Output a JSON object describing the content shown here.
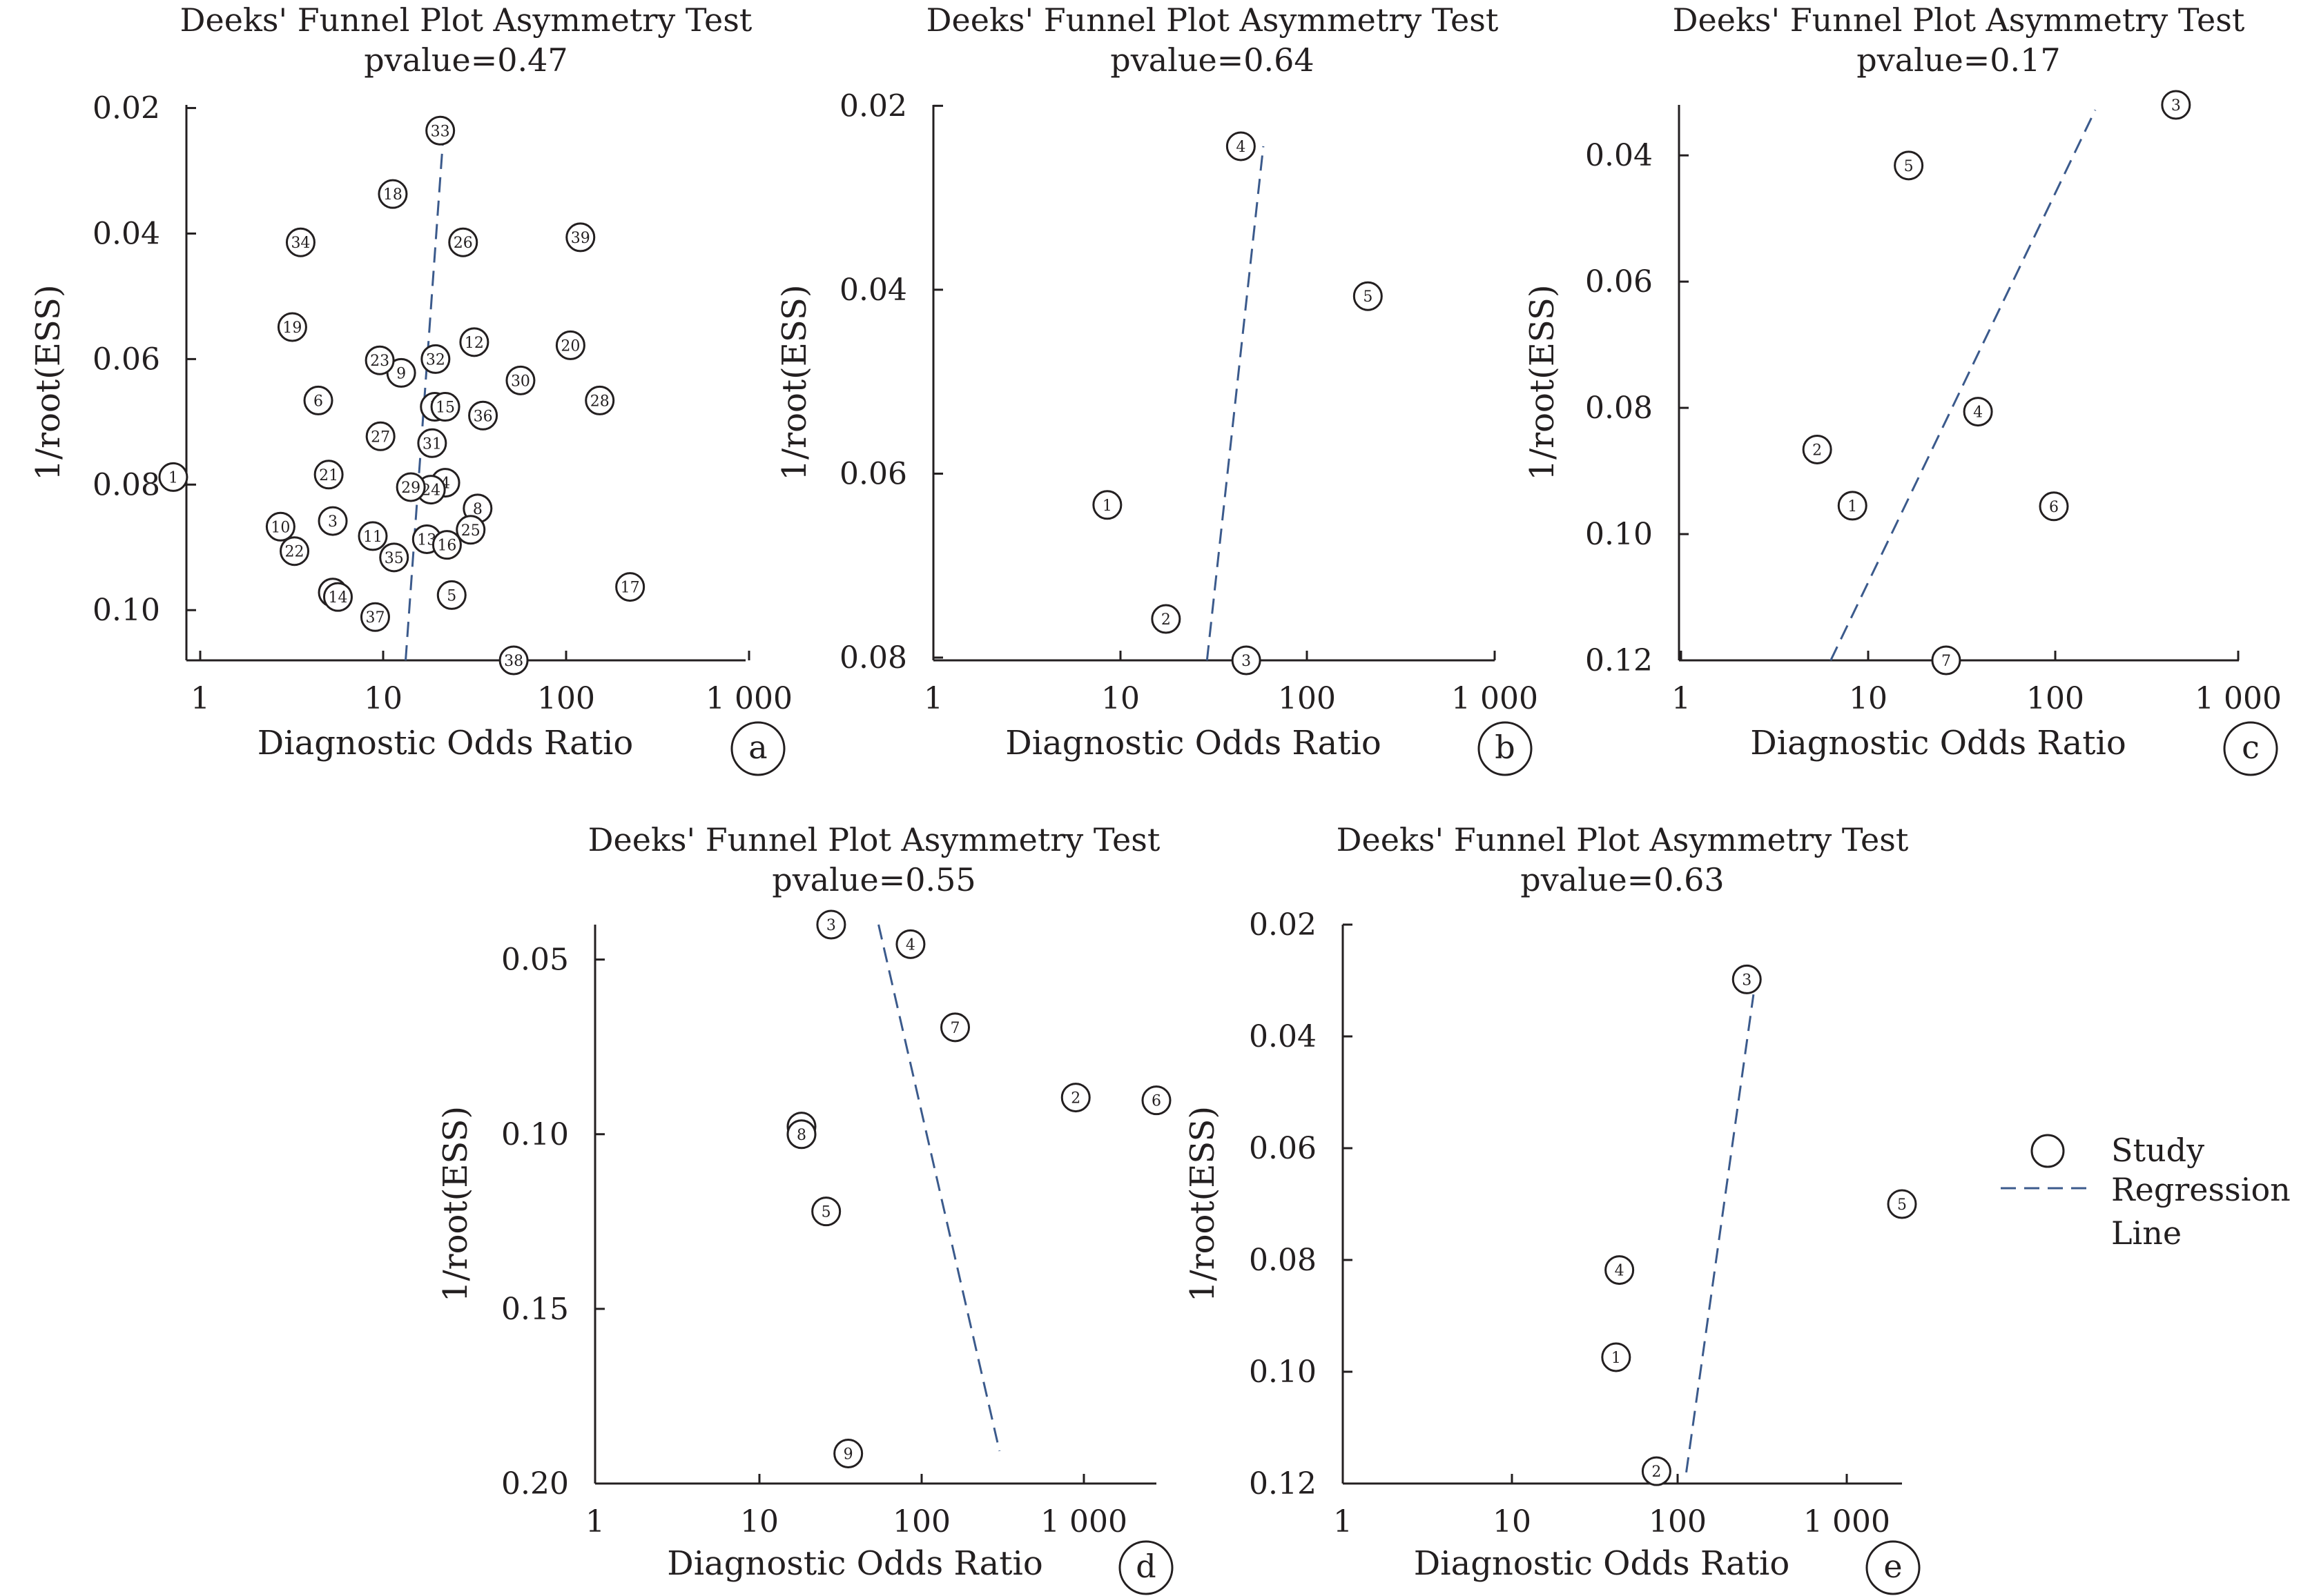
{
  "chart_data": [
    {
      "panel_letter": "a",
      "type": "scatter",
      "title": "Deeks' Funnel Plot Asymmetry Test",
      "subtitle": "pvalue=0.47",
      "xlabel": "Diagnostic Odds Ratio",
      "ylabel": "1/root(ESS)",
      "x_scale": "log",
      "xlim": [
        1,
        1000
      ],
      "x_ticks": [
        "1",
        "10",
        "100",
        "1 000"
      ],
      "ylim": [
        0.0195,
        0.108
      ],
      "y_ticks": [
        "0.02",
        "0.04",
        "0.06",
        "0.08",
        "0.10"
      ],
      "y_tick_values": [
        0.02,
        0.04,
        0.06,
        0.08,
        0.1
      ],
      "points": [
        {
          "label": "1",
          "x": 0.85,
          "y": 0.0788
        },
        {
          "label": "2",
          "x": 6.1,
          "y": 0.0972
        },
        {
          "label": "3",
          "x": 6.1,
          "y": 0.0858
        },
        {
          "label": "4",
          "x": 24.5,
          "y": 0.0797
        },
        {
          "label": "5",
          "x": 26.5,
          "y": 0.0976
        },
        {
          "label": "6",
          "x": 5.1,
          "y": 0.0666
        },
        {
          "label": "7",
          "x": 21.5,
          "y": 0.0676
        },
        {
          "label": "8",
          "x": 36.5,
          "y": 0.0838
        },
        {
          "label": "9",
          "x": 14.2,
          "y": 0.0622
        },
        {
          "label": "10",
          "x": 3.2,
          "y": 0.0867
        },
        {
          "label": "11",
          "x": 10.0,
          "y": 0.0882
        },
        {
          "label": "12",
          "x": 35.0,
          "y": 0.0573
        },
        {
          "label": "13",
          "x": 19.5,
          "y": 0.0887
        },
        {
          "label": "14",
          "x": 6.5,
          "y": 0.0979
        },
        {
          "label": "15",
          "x": 24.5,
          "y": 0.0676
        },
        {
          "label": "16",
          "x": 25.0,
          "y": 0.0896
        },
        {
          "label": "17",
          "x": 240,
          "y": 0.0963
        },
        {
          "label": "18",
          "x": 12.8,
          "y": 0.0337
        },
        {
          "label": "19",
          "x": 3.7,
          "y": 0.0549
        },
        {
          "label": "20",
          "x": 115,
          "y": 0.0578
        },
        {
          "label": "21",
          "x": 5.8,
          "y": 0.0784
        },
        {
          "label": "22",
          "x": 3.8,
          "y": 0.0906
        },
        {
          "label": "23",
          "x": 10.9,
          "y": 0.0602
        },
        {
          "label": "24",
          "x": 20.5,
          "y": 0.0808
        },
        {
          "label": "25",
          "x": 33.5,
          "y": 0.0872
        },
        {
          "label": "26",
          "x": 30.5,
          "y": 0.0414
        },
        {
          "label": "27",
          "x": 11.0,
          "y": 0.0723
        },
        {
          "label": "28",
          "x": 165,
          "y": 0.0666
        },
        {
          "label": "29",
          "x": 16.0,
          "y": 0.0804
        },
        {
          "label": "30",
          "x": 62,
          "y": 0.0634
        },
        {
          "label": "31",
          "x": 20.8,
          "y": 0.0734
        },
        {
          "label": "32",
          "x": 21.7,
          "y": 0.06
        },
        {
          "label": "33",
          "x": 23.0,
          "y": 0.0236
        },
        {
          "label": "34",
          "x": 4.1,
          "y": 0.0414
        },
        {
          "label": "35",
          "x": 13.0,
          "y": 0.0916
        },
        {
          "label": "36",
          "x": 39.0,
          "y": 0.069
        },
        {
          "label": "37",
          "x": 10.3,
          "y": 0.1011
        },
        {
          "label": "38",
          "x": 57,
          "y": 0.108
        },
        {
          "label": "39",
          "x": 130,
          "y": 0.0406
        }
      ],
      "regression_line": [
        {
          "x": 15.0,
          "y": 0.108
        },
        {
          "x": 24.0,
          "y": 0.0236
        }
      ]
    },
    {
      "panel_letter": "b",
      "type": "scatter",
      "title": "Deeks' Funnel Plot Asymmetry Test",
      "subtitle": "pvalue=0.64",
      "xlabel": "Diagnostic Odds Ratio",
      "ylabel": "1/root(ESS)",
      "x_scale": "log",
      "xlim": [
        1,
        1000
      ],
      "x_ticks": [
        "1",
        "10",
        "100",
        "1 000"
      ],
      "ylim": [
        0.0199,
        0.0803
      ],
      "y_ticks": [
        "0.02",
        "0.04",
        "0.06",
        "0.08"
      ],
      "y_tick_values": [
        0.02,
        0.04,
        0.06,
        0.08
      ],
      "points": [
        {
          "label": "1",
          "x": 8.5,
          "y": 0.0634
        },
        {
          "label": "2",
          "x": 17.5,
          "y": 0.0758
        },
        {
          "label": "3",
          "x": 47,
          "y": 0.0803
        },
        {
          "label": "4",
          "x": 44,
          "y": 0.0244
        },
        {
          "label": "5",
          "x": 210,
          "y": 0.0407
        }
      ],
      "regression_line": [
        {
          "x": 29,
          "y": 0.0803
        },
        {
          "x": 58,
          "y": 0.0244
        }
      ]
    },
    {
      "panel_letter": "c",
      "type": "scatter",
      "title": "Deeks' Funnel Plot Asymmetry Test",
      "subtitle": "pvalue=0.17",
      "xlabel": "Diagnostic Odds Ratio",
      "ylabel": "1/root(ESS)",
      "x_scale": "log",
      "xlim": [
        1,
        1000
      ],
      "x_ticks": [
        "1",
        "10",
        "100",
        "1 000"
      ],
      "ylim": [
        0.032,
        0.12
      ],
      "y_ticks": [
        "0.04",
        "0.06",
        "0.08",
        "0.10",
        "0.12"
      ],
      "y_tick_values": [
        0.04,
        0.06,
        0.08,
        0.1,
        0.12
      ],
      "points": [
        {
          "label": "1",
          "x": 8.5,
          "y": 0.0955
        },
        {
          "label": "2",
          "x": 5.5,
          "y": 0.0866
        },
        {
          "label": "3",
          "x": 460,
          "y": 0.032
        },
        {
          "label": "4",
          "x": 40,
          "y": 0.0806
        },
        {
          "label": "5",
          "x": 17,
          "y": 0.0416
        },
        {
          "label": "6",
          "x": 102,
          "y": 0.0956
        },
        {
          "label": "7",
          "x": 27,
          "y": 0.12
        }
      ],
      "regression_line": [
        {
          "x": 6.5,
          "y": 0.12
        },
        {
          "x": 170,
          "y": 0.0328
        }
      ]
    },
    {
      "panel_letter": "d",
      "type": "scatter",
      "title": "Deeks' Funnel Plot Asymmetry Test",
      "subtitle": "pvalue=0.55",
      "xlabel": "Diagnostic Odds Ratio",
      "ylabel": "1/root(ESS)",
      "x_scale": "log",
      "xlim": [
        1,
        3000
      ],
      "x_ticks": [
        "1",
        "10",
        "100",
        "1 000"
      ],
      "ylim": [
        0.04,
        0.2
      ],
      "y_ticks": [
        "0.05",
        "0.10",
        "0.15",
        "0.20"
      ],
      "y_tick_values": [
        0.05,
        0.1,
        0.15,
        0.2
      ],
      "points": [
        {
          "label": "1",
          "x": 19,
          "y": 0.0978
        },
        {
          "label": "8",
          "x": 19,
          "y": 0.1
        },
        {
          "label": "2",
          "x": 950,
          "y": 0.0895
        },
        {
          "label": "3",
          "x": 29,
          "y": 0.04
        },
        {
          "label": "4",
          "x": 90,
          "y": 0.0456
        },
        {
          "label": "5",
          "x": 27,
          "y": 0.1221
        },
        {
          "label": "6",
          "x": 3000,
          "y": 0.0903
        },
        {
          "label": "7",
          "x": 170,
          "y": 0.0694
        },
        {
          "label": "9",
          "x": 37,
          "y": 0.1914
        }
      ],
      "regression_line": [
        {
          "x": 57,
          "y": 0.04
        },
        {
          "x": 320,
          "y": 0.1907
        }
      ]
    },
    {
      "panel_letter": "e",
      "type": "scatter",
      "title": "Deeks' Funnel Plot Asymmetry Test",
      "subtitle": "pvalue=0.63",
      "xlabel": "Diagnostic Odds Ratio",
      "ylabel": "1/root(ESS)",
      "x_scale": "log",
      "xlim": [
        1,
        2200
      ],
      "x_ticks": [
        "1",
        "10",
        "100",
        "1 000"
      ],
      "ylim": [
        0.02,
        0.12
      ],
      "y_ticks": [
        "0.02",
        "0.04",
        "0.06",
        "0.08",
        "0.10",
        "0.12"
      ],
      "y_tick_values": [
        0.02,
        0.04,
        0.06,
        0.08,
        0.1,
        0.12
      ],
      "points": [
        {
          "label": "1",
          "x": 43,
          "y": 0.0974
        },
        {
          "label": "2",
          "x": 75,
          "y": 0.1178
        },
        {
          "label": "3",
          "x": 260,
          "y": 0.0298
        },
        {
          "label": "4",
          "x": 45,
          "y": 0.0818
        },
        {
          "label": "5",
          "x": 2200,
          "y": 0.07
        }
      ],
      "regression_line": [
        {
          "x": 113,
          "y": 0.118
        },
        {
          "x": 285,
          "y": 0.0325
        }
      ]
    }
  ],
  "legend": {
    "study_label": "Study",
    "regression_label_line1": "Regression",
    "regression_label_line2": "Line"
  },
  "colors": {
    "text": "#231f20",
    "axis": "#231f20",
    "regression_line": "#3b5a8c"
  }
}
